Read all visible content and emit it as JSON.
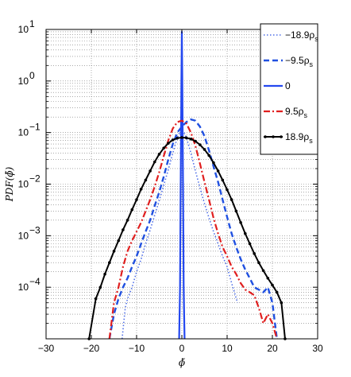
{
  "chart_data": {
    "type": "line",
    "title": "",
    "xlabel": "ϕ̃",
    "ylabel": "PDF(ϕ̃)",
    "xlim": [
      -30,
      30
    ],
    "ylim": [
      1e-05,
      10
    ],
    "yscale": "log",
    "grid": true,
    "legend_position": "top-right",
    "x_ticks": [
      -30,
      -20,
      -10,
      0,
      10,
      20,
      30
    ],
    "x_tick_labels": [
      "−30",
      "−20",
      "−10",
      "0",
      "10",
      "20",
      "30"
    ],
    "y_ticks": [
      0.0001,
      0.001,
      0.01,
      0.1,
      1,
      10
    ],
    "y_tick_labels": [
      {
        "base": "10",
        "exp": "−4"
      },
      {
        "base": "10",
        "exp": "−3"
      },
      {
        "base": "10",
        "exp": "−2"
      },
      {
        "base": "10",
        "exp": "−1"
      },
      {
        "base": "10",
        "exp": "0"
      },
      {
        "base": "10",
        "exp": "1"
      }
    ],
    "series": [
      {
        "name": "−18.9ρ",
        "name_sub": "s",
        "color": "#4f6fe8",
        "style": "dotted",
        "x": [
          -13.2,
          -12.5,
          -12,
          -11,
          -10,
          -9,
          -8,
          -7,
          -6,
          -5,
          -4,
          -3,
          -2,
          -1,
          -0.5,
          0.5,
          1,
          2,
          3,
          4,
          5,
          6,
          7,
          8,
          9,
          10,
          11,
          12.3
        ],
        "y": [
          1e-05,
          4e-05,
          6e-05,
          0.0001,
          0.0002,
          0.00035,
          0.0007,
          0.0013,
          0.0025,
          0.0048,
          0.0095,
          0.019,
          0.04,
          0.08,
          0.1,
          0.1,
          0.08,
          0.04,
          0.018,
          0.0085,
          0.0042,
          0.0022,
          0.0012,
          0.0007,
          0.0004,
          0.00025,
          0.00012,
          5e-05
        ]
      },
      {
        "name": "−9.5ρ",
        "name_sub": "s",
        "color": "#2050e0",
        "style": "dashed",
        "x": [
          -16,
          -15,
          -14,
          -13,
          -12,
          -11,
          -10,
          -9,
          -8,
          -7,
          -6,
          -5,
          -4,
          -3,
          -2,
          -1,
          0,
          1,
          2,
          3,
          4,
          5,
          6,
          7,
          8,
          9,
          10,
          11,
          12,
          13,
          14,
          15,
          16,
          17,
          18,
          19,
          20,
          21
        ],
        "y": [
          1e-05,
          3e-05,
          6e-05,
          0.0001,
          0.00015,
          0.00025,
          0.0004,
          0.0007,
          0.0012,
          0.002,
          0.0038,
          0.007,
          0.014,
          0.03,
          0.06,
          0.1,
          0.13,
          0.16,
          0.18,
          0.17,
          0.13,
          0.085,
          0.045,
          0.022,
          0.011,
          0.005,
          0.0023,
          0.0011,
          0.0006,
          0.00035,
          0.00022,
          0.00015,
          0.0001,
          9e-05,
          8e-05,
          0.0001,
          5e-05,
          1e-05
        ]
      },
      {
        "name": "0",
        "name_sub": "",
        "color": "#2448ef",
        "style": "solid",
        "x": [
          -0.6,
          -0.4,
          -0.3,
          -0.2,
          -0.1,
          0,
          0.1,
          0.2,
          0.3,
          0.4,
          0.6
        ],
        "y": [
          1e-05,
          0.0001,
          0.003,
          0.05,
          1,
          9,
          1,
          0.05,
          0.003,
          0.0001,
          1e-05
        ]
      },
      {
        "name": "9.5ρ",
        "name_sub": "s",
        "color": "#e01f1f",
        "style": "dashdot",
        "x": [
          -16,
          -15,
          -14,
          -13,
          -12,
          -11,
          -10,
          -9,
          -8,
          -7,
          -6,
          -5,
          -4,
          -3,
          -2,
          -1,
          0,
          1,
          2,
          3,
          4,
          5,
          6,
          7,
          8,
          9,
          10,
          11,
          12,
          13,
          14,
          15,
          16,
          17,
          18,
          19,
          20,
          21
        ],
        "y": [
          1e-05,
          5e-05,
          0.0001,
          0.00025,
          0.0005,
          0.0008,
          0.0012,
          0.0018,
          0.003,
          0.005,
          0.009,
          0.017,
          0.035,
          0.07,
          0.12,
          0.16,
          0.17,
          0.15,
          0.1,
          0.055,
          0.025,
          0.011,
          0.005,
          0.0022,
          0.0011,
          0.0006,
          0.0004,
          0.00025,
          0.00018,
          0.00012,
          9e-05,
          8e-05,
          7e-05,
          4e-05,
          2e-05,
          3e-05,
          2e-05,
          1e-05
        ]
      },
      {
        "name": "18.9ρ",
        "name_sub": "s",
        "color": "#000000",
        "style": "solid-marker",
        "x": [
          -20.5,
          -19,
          -18,
          -17,
          -16,
          -15,
          -14,
          -13,
          -12,
          -11,
          -10,
          -9,
          -8,
          -7,
          -6,
          -5,
          -4,
          -3,
          -2,
          -1,
          0,
          1,
          2,
          3,
          4,
          5,
          6,
          7,
          8,
          9,
          10,
          11,
          12,
          13,
          14,
          15,
          16,
          17,
          18,
          19,
          20,
          21,
          22,
          22.8
        ],
        "y": [
          1e-05,
          6e-05,
          0.0001,
          0.00018,
          0.0003,
          0.0005,
          0.0008,
          0.0013,
          0.002,
          0.0032,
          0.005,
          0.008,
          0.012,
          0.018,
          0.027,
          0.038,
          0.05,
          0.062,
          0.072,
          0.078,
          0.08,
          0.079,
          0.075,
          0.068,
          0.058,
          0.047,
          0.036,
          0.026,
          0.018,
          0.012,
          0.0078,
          0.005,
          0.003,
          0.0018,
          0.0011,
          0.0007,
          0.00045,
          0.0003,
          0.00021,
          0.00015,
          0.00011,
          8e-05,
          5e-05,
          1e-05
        ]
      }
    ]
  }
}
